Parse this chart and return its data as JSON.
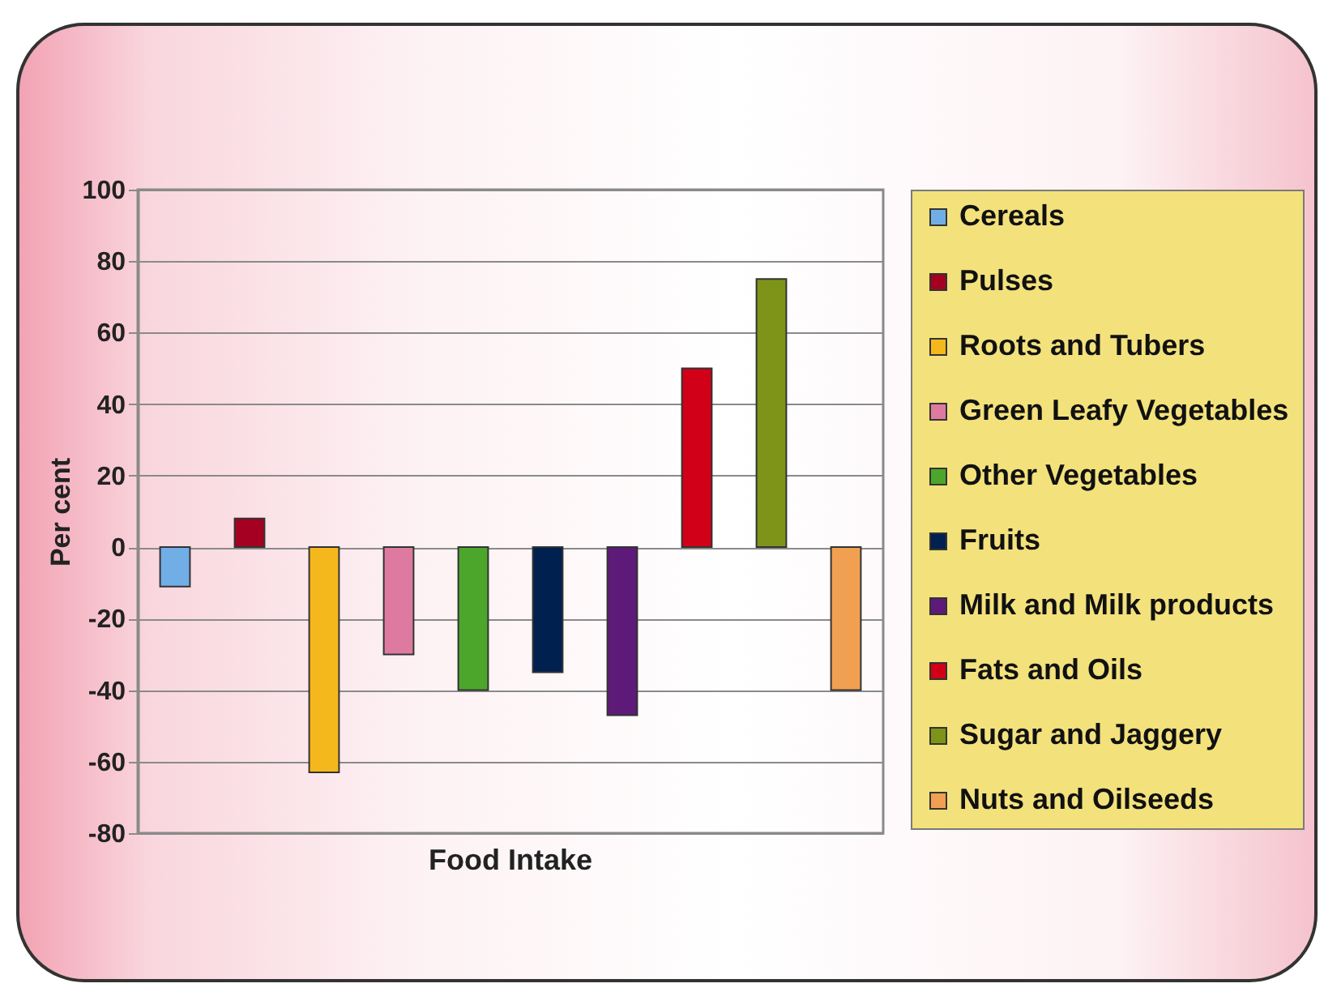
{
  "chart_data": {
    "type": "bar",
    "categories": [
      "Food Intake"
    ],
    "ylabel": "Per cent",
    "ylim": [
      -80,
      100
    ],
    "yticks": [
      -80,
      -60,
      -40,
      -20,
      0,
      20,
      40,
      60,
      80,
      100
    ],
    "grid": "y",
    "legend": "right",
    "series": [
      {
        "name": "Cereals",
        "color": "#72aee6",
        "values": [
          -11
        ]
      },
      {
        "name": "Pulses",
        "color": "#a50021",
        "values": [
          8
        ]
      },
      {
        "name": "Roots and Tubers",
        "color": "#f5b81c",
        "values": [
          -63
        ]
      },
      {
        "name": "Green Leafy Vegetables",
        "color": "#de7aa0",
        "values": [
          -30
        ]
      },
      {
        "name": "Other Vegetables",
        "color": "#4ca62c",
        "values": [
          -40
        ]
      },
      {
        "name": "Fruits",
        "color": "#002050",
        "values": [
          -35
        ]
      },
      {
        "name": "Milk and Milk products",
        "color": "#5e1a78",
        "values": [
          -47
        ]
      },
      {
        "name": "Fats and Oils",
        "color": "#d10018",
        "values": [
          50
        ]
      },
      {
        "name": "Sugar and Jaggery",
        "color": "#7e9419",
        "values": [
          75
        ]
      },
      {
        "name": "Nuts and Oilseeds",
        "color": "#f0a050",
        "values": [
          -40
        ]
      }
    ]
  }
}
